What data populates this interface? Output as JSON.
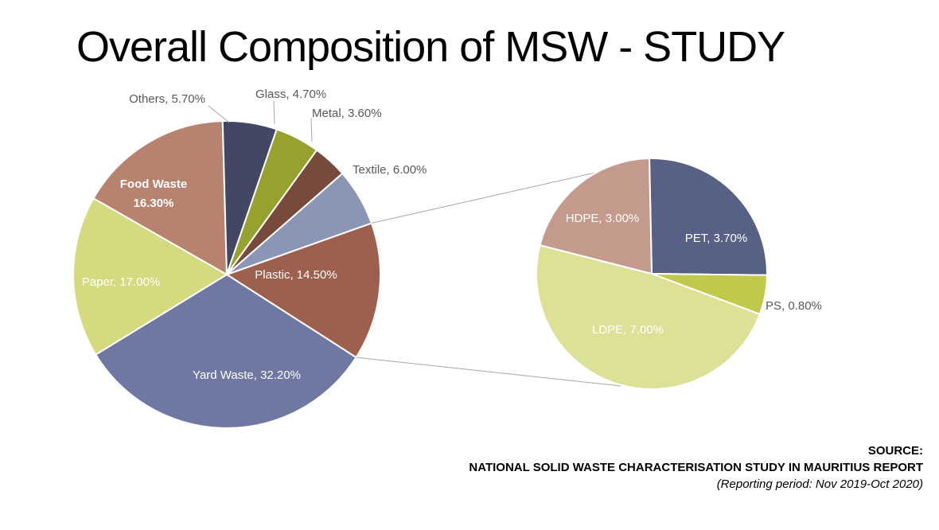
{
  "title": "Overall Composition of MSW - STUDY",
  "source": {
    "heading": "SOURCE:",
    "report": "NATIONAL SOLID WASTE CHARACTERISATION STUDY IN MAURITIUS REPORT",
    "period": "(Reporting period: Nov 2019-Oct 2020)"
  },
  "chart_data": [
    {
      "type": "pie",
      "slices": [
        {
          "label": "Plastic, 14.50%",
          "value": 14.5,
          "color": "#9d604e"
        },
        {
          "label": "Yard Waste, 32.20%",
          "value": 32.2,
          "color": "#6f78a2"
        },
        {
          "label": "Paper, 17.00%",
          "value": 17.0,
          "color": "#d4da7d"
        },
        {
          "label": "Food Waste, 16.30%",
          "value": 16.3,
          "color": "#b7836f"
        },
        {
          "label": "Others, 5.70%",
          "value": 5.7,
          "color": "#424864"
        },
        {
          "label": "Glass, 4.70%",
          "value": 4.7,
          "color": "#97a12e"
        },
        {
          "label": "Metal, 3.60%",
          "value": 3.6,
          "color": "#774a3c"
        },
        {
          "label": "Textile, 6.00%",
          "value": 6.0,
          "color": "#8b95b6"
        }
      ]
    },
    {
      "type": "pie",
      "slices": [
        {
          "label": "PET, 3.70%",
          "value": 3.7,
          "color": "#576186"
        },
        {
          "label": "PS, 0.80%",
          "value": 0.8,
          "color": "#c0c94b"
        },
        {
          "label": "LDPE, 7.00%",
          "value": 7.0,
          "color": "#dce195"
        },
        {
          "label": "HDPE, 3.00%",
          "value": 3.0,
          "color": "#c49a8c"
        }
      ]
    }
  ]
}
